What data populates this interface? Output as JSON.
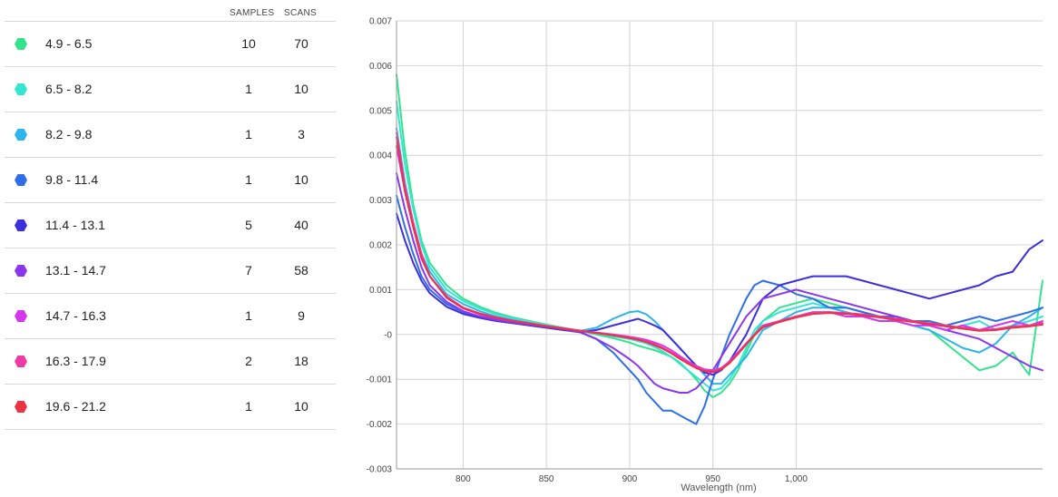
{
  "legend": {
    "headers": {
      "samples": "SAMPLES",
      "scans": "SCANS"
    },
    "rows": [
      {
        "range": "4.9 - 6.5",
        "samples": "10",
        "scans": "70",
        "color": "#33e48c"
      },
      {
        "range": "6.5 - 8.2",
        "samples": "1",
        "scans": "10",
        "color": "#33e6d2"
      },
      {
        "range": "8.2 - 9.8",
        "samples": "1",
        "scans": "3",
        "color": "#2bb5ea"
      },
      {
        "range": "9.8 - 11.4",
        "samples": "1",
        "scans": "10",
        "color": "#2f6ee8"
      },
      {
        "range": "11.4 - 13.1",
        "samples": "5",
        "scans": "40",
        "color": "#3c2fdc"
      },
      {
        "range": "13.1 - 14.7",
        "samples": "7",
        "scans": "58",
        "color": "#8a35ee"
      },
      {
        "range": "14.7 - 16.3",
        "samples": "1",
        "scans": "9",
        "color": "#d636ee"
      },
      {
        "range": "16.3 - 17.9",
        "samples": "2",
        "scans": "18",
        "color": "#ef3aa6"
      },
      {
        "range": "19.6 - 21.2",
        "samples": "1",
        "scans": "10",
        "color": "#ea3344"
      }
    ]
  },
  "chart_data": {
    "type": "line",
    "title": "",
    "xlabel": "Wavelength (nm)",
    "ylabel": "",
    "xlim": [
      760,
      1148
    ],
    "ylim": [
      -0.003,
      0.007
    ],
    "x_ticks": [
      800,
      850,
      900,
      950,
      1000
    ],
    "x_tick_labels": [
      "800",
      "850",
      "900",
      "950",
      "1,000"
    ],
    "y_ticks": [
      -0.003,
      -0.002,
      -0.001,
      0,
      0.001,
      0.002,
      0.003,
      0.004,
      0.005,
      0.006,
      0.007
    ],
    "y_tick_labels": [
      "-0.003",
      "-0.002",
      "-0.001",
      "-0",
      "0.001",
      "0.002",
      "0.003",
      "0.004",
      "0.005",
      "0.006",
      "0.007"
    ],
    "grid": true,
    "legend_position": "left-table",
    "x": [
      760,
      765,
      770,
      775,
      780,
      790,
      800,
      810,
      820,
      830,
      840,
      850,
      860,
      870,
      880,
      890,
      900,
      905,
      910,
      915,
      920,
      925,
      930,
      935,
      940,
      945,
      950,
      955,
      960,
      965,
      970,
      975,
      980,
      990,
      1000,
      1010,
      1020,
      1030,
      1040,
      1050,
      1060,
      1070,
      1080,
      1090,
      1100,
      1110,
      1120,
      1130,
      1140,
      1148
    ],
    "series": [
      {
        "color": "#33e48c",
        "values": [
          0.0058,
          0.0041,
          0.0029,
          0.0021,
          0.0016,
          0.0011,
          0.0008,
          0.00062,
          0.00048,
          0.00038,
          0.0003,
          0.00022,
          0.00015,
          8e-05,
          0.0,
          -8e-05,
          -0.00018,
          -0.00025,
          -0.0003,
          -0.00035,
          -0.00042,
          -0.0005,
          -0.00065,
          -0.0008,
          -0.001,
          -0.00125,
          -0.0014,
          -0.0013,
          -0.0011,
          -0.0008,
          -0.0004,
          0.0,
          0.0003,
          0.0006,
          0.0007,
          0.0008,
          0.0007,
          0.0006,
          0.0005,
          0.0004,
          0.0003,
          0.0002,
          0.0001,
          -0.0002,
          -0.0005,
          -0.0008,
          -0.0007,
          -0.0004,
          -0.0009,
          0.0012
        ]
      },
      {
        "color": "#33e6d2",
        "values": [
          0.0052,
          0.0038,
          0.0028,
          0.002,
          0.0015,
          0.001,
          0.00075,
          0.00058,
          0.00045,
          0.00036,
          0.00028,
          0.0002,
          0.00014,
          8e-05,
          2e-05,
          -4e-05,
          -0.0001,
          -0.00015,
          -0.0002,
          -0.00028,
          -0.00038,
          -0.0005,
          -0.00062,
          -0.0008,
          -0.00095,
          -0.0011,
          -0.00125,
          -0.0012,
          -0.001,
          -0.0007,
          -0.0003,
          0.0001,
          0.0003,
          0.0005,
          0.0006,
          0.0007,
          0.0006,
          0.0006,
          0.0005,
          0.0004,
          0.0004,
          0.0003,
          0.0002,
          0.0001,
          0.0002,
          0.0003,
          0.0001,
          0.0002,
          0.0003,
          0.0004
        ]
      },
      {
        "color": "#2bb5ea",
        "values": [
          0.0046,
          0.0034,
          0.0025,
          0.0018,
          0.0014,
          0.0009,
          0.00068,
          0.00052,
          0.0004,
          0.00032,
          0.00025,
          0.00018,
          0.00012,
          8e-05,
          0.00015,
          0.00035,
          0.0005,
          0.00052,
          0.00045,
          0.0003,
          0.0001,
          -0.0001,
          -0.0003,
          -0.0005,
          -0.0007,
          -0.0009,
          -0.0011,
          -0.0011,
          -0.0009,
          -0.0007,
          -0.0005,
          -0.0002,
          0.0001,
          0.0003,
          0.0005,
          0.0006,
          0.0006,
          0.0005,
          0.0004,
          0.0004,
          0.0003,
          0.0002,
          0.0001,
          -0.0001,
          -0.0003,
          -0.0004,
          -0.0002,
          0.0002,
          0.0004,
          0.0006
        ]
      },
      {
        "color": "#2f6ee8",
        "values": [
          0.0031,
          0.0024,
          0.0018,
          0.0013,
          0.001,
          0.00068,
          0.0005,
          0.0004,
          0.00033,
          0.00028,
          0.00023,
          0.00018,
          0.00012,
          5e-05,
          -0.0001,
          -0.0004,
          -0.0008,
          -0.001,
          -0.0013,
          -0.0015,
          -0.0017,
          -0.0017,
          -0.0018,
          -0.0019,
          -0.002,
          -0.0016,
          -0.001,
          -0.0005,
          0.0,
          0.0004,
          0.0008,
          0.0011,
          0.0012,
          0.0011,
          0.0009,
          0.0008,
          0.0006,
          0.0006,
          0.0005,
          0.0004,
          0.0004,
          0.0003,
          0.0003,
          0.0002,
          0.0003,
          0.0004,
          0.0003,
          0.0004,
          0.0005,
          0.0006
        ]
      },
      {
        "color": "#3c2fdc",
        "values": [
          0.0027,
          0.0021,
          0.0016,
          0.0012,
          0.00092,
          0.00062,
          0.00046,
          0.00037,
          0.0003,
          0.00025,
          0.0002,
          0.00015,
          0.0001,
          5e-05,
          0.0001,
          0.0002,
          0.0003,
          0.00035,
          0.00028,
          0.0002,
          0.0001,
          -0.0001,
          -0.0003,
          -0.0005,
          -0.0007,
          -0.00085,
          -0.0009,
          -0.0008,
          -0.0006,
          -0.0003,
          0.0,
          0.0004,
          0.0008,
          0.0011,
          0.0012,
          0.0013,
          0.0013,
          0.0013,
          0.0012,
          0.0011,
          0.001,
          0.0009,
          0.0008,
          0.0009,
          0.001,
          0.0011,
          0.0013,
          0.0014,
          0.0019,
          0.0021
        ]
      },
      {
        "color": "#8a35ee",
        "values": [
          0.0036,
          0.0028,
          0.0021,
          0.0015,
          0.0011,
          0.00073,
          0.00052,
          0.0004,
          0.00032,
          0.00027,
          0.00022,
          0.00017,
          0.00012,
          6e-05,
          -0.0001,
          -0.0003,
          -0.00055,
          -0.0007,
          -0.0009,
          -0.0011,
          -0.0012,
          -0.00125,
          -0.0013,
          -0.0013,
          -0.0012,
          -0.001,
          -0.0008,
          -0.0005,
          -0.0002,
          0.0001,
          0.0004,
          0.0006,
          0.0008,
          0.0009,
          0.001,
          0.0009,
          0.0008,
          0.0007,
          0.0006,
          0.0005,
          0.0004,
          0.0003,
          0.0002,
          0.0001,
          0.0,
          -0.0001,
          -0.0003,
          -0.0005,
          -0.0007,
          -0.0008
        ]
      },
      {
        "color": "#d636ee",
        "values": [
          0.0042,
          0.0032,
          0.0024,
          0.0017,
          0.0013,
          0.00082,
          0.00058,
          0.00045,
          0.00036,
          0.0003,
          0.00024,
          0.00018,
          0.00013,
          8e-05,
          4e-05,
          0.0,
          -5e-05,
          -8e-05,
          -0.00012,
          -0.00018,
          -0.00025,
          -0.00035,
          -0.00048,
          -0.0006,
          -0.0007,
          -0.00078,
          -0.0008,
          -0.00075,
          -0.0006,
          -0.0004,
          -0.0002,
          0.0,
          0.0002,
          0.0003,
          0.0004,
          0.0005,
          0.0005,
          0.0004,
          0.0004,
          0.0003,
          0.0003,
          0.0002,
          0.0002,
          0.0001,
          0.0002,
          0.0001,
          0.0002,
          0.0003,
          0.0002,
          0.0003
        ]
      },
      {
        "color": "#ef3aa6",
        "values": [
          0.0045,
          0.0033,
          0.0025,
          0.0018,
          0.0013,
          0.00085,
          0.0006,
          0.00047,
          0.00038,
          0.00031,
          0.00025,
          0.00019,
          0.00014,
          9e-05,
          4e-05,
          -1e-05,
          -6e-05,
          -0.0001,
          -0.00015,
          -0.00022,
          -0.0003,
          -0.0004,
          -0.00052,
          -0.00063,
          -0.00073,
          -0.0008,
          -0.00082,
          -0.00076,
          -0.00062,
          -0.00042,
          -0.0002,
          0.0,
          0.00018,
          0.0003,
          0.0004,
          0.00048,
          0.0005,
          0.00048,
          0.00045,
          0.0004,
          0.00035,
          0.0003,
          0.00025,
          0.0002,
          0.00015,
          0.0001,
          0.00012,
          0.00018,
          0.0002,
          0.00025
        ]
      },
      {
        "color": "#ea3344",
        "values": [
          0.0044,
          0.0032,
          0.0024,
          0.0017,
          0.0013,
          0.00083,
          0.00059,
          0.00046,
          0.00037,
          0.0003,
          0.00024,
          0.00018,
          0.00013,
          8e-05,
          3e-05,
          -2e-05,
          -8e-05,
          -0.00012,
          -0.00017,
          -0.00024,
          -0.00032,
          -0.00042,
          -0.00054,
          -0.00065,
          -0.00075,
          -0.00082,
          -0.00084,
          -0.00078,
          -0.00064,
          -0.00044,
          -0.00022,
          -2e-05,
          0.00016,
          0.00028,
          0.00038,
          0.00046,
          0.00048,
          0.00046,
          0.00043,
          0.00038,
          0.00033,
          0.00028,
          0.00023,
          0.00018,
          0.00013,
          8e-05,
          0.0001,
          0.00015,
          0.00018,
          0.00022
        ]
      }
    ]
  }
}
